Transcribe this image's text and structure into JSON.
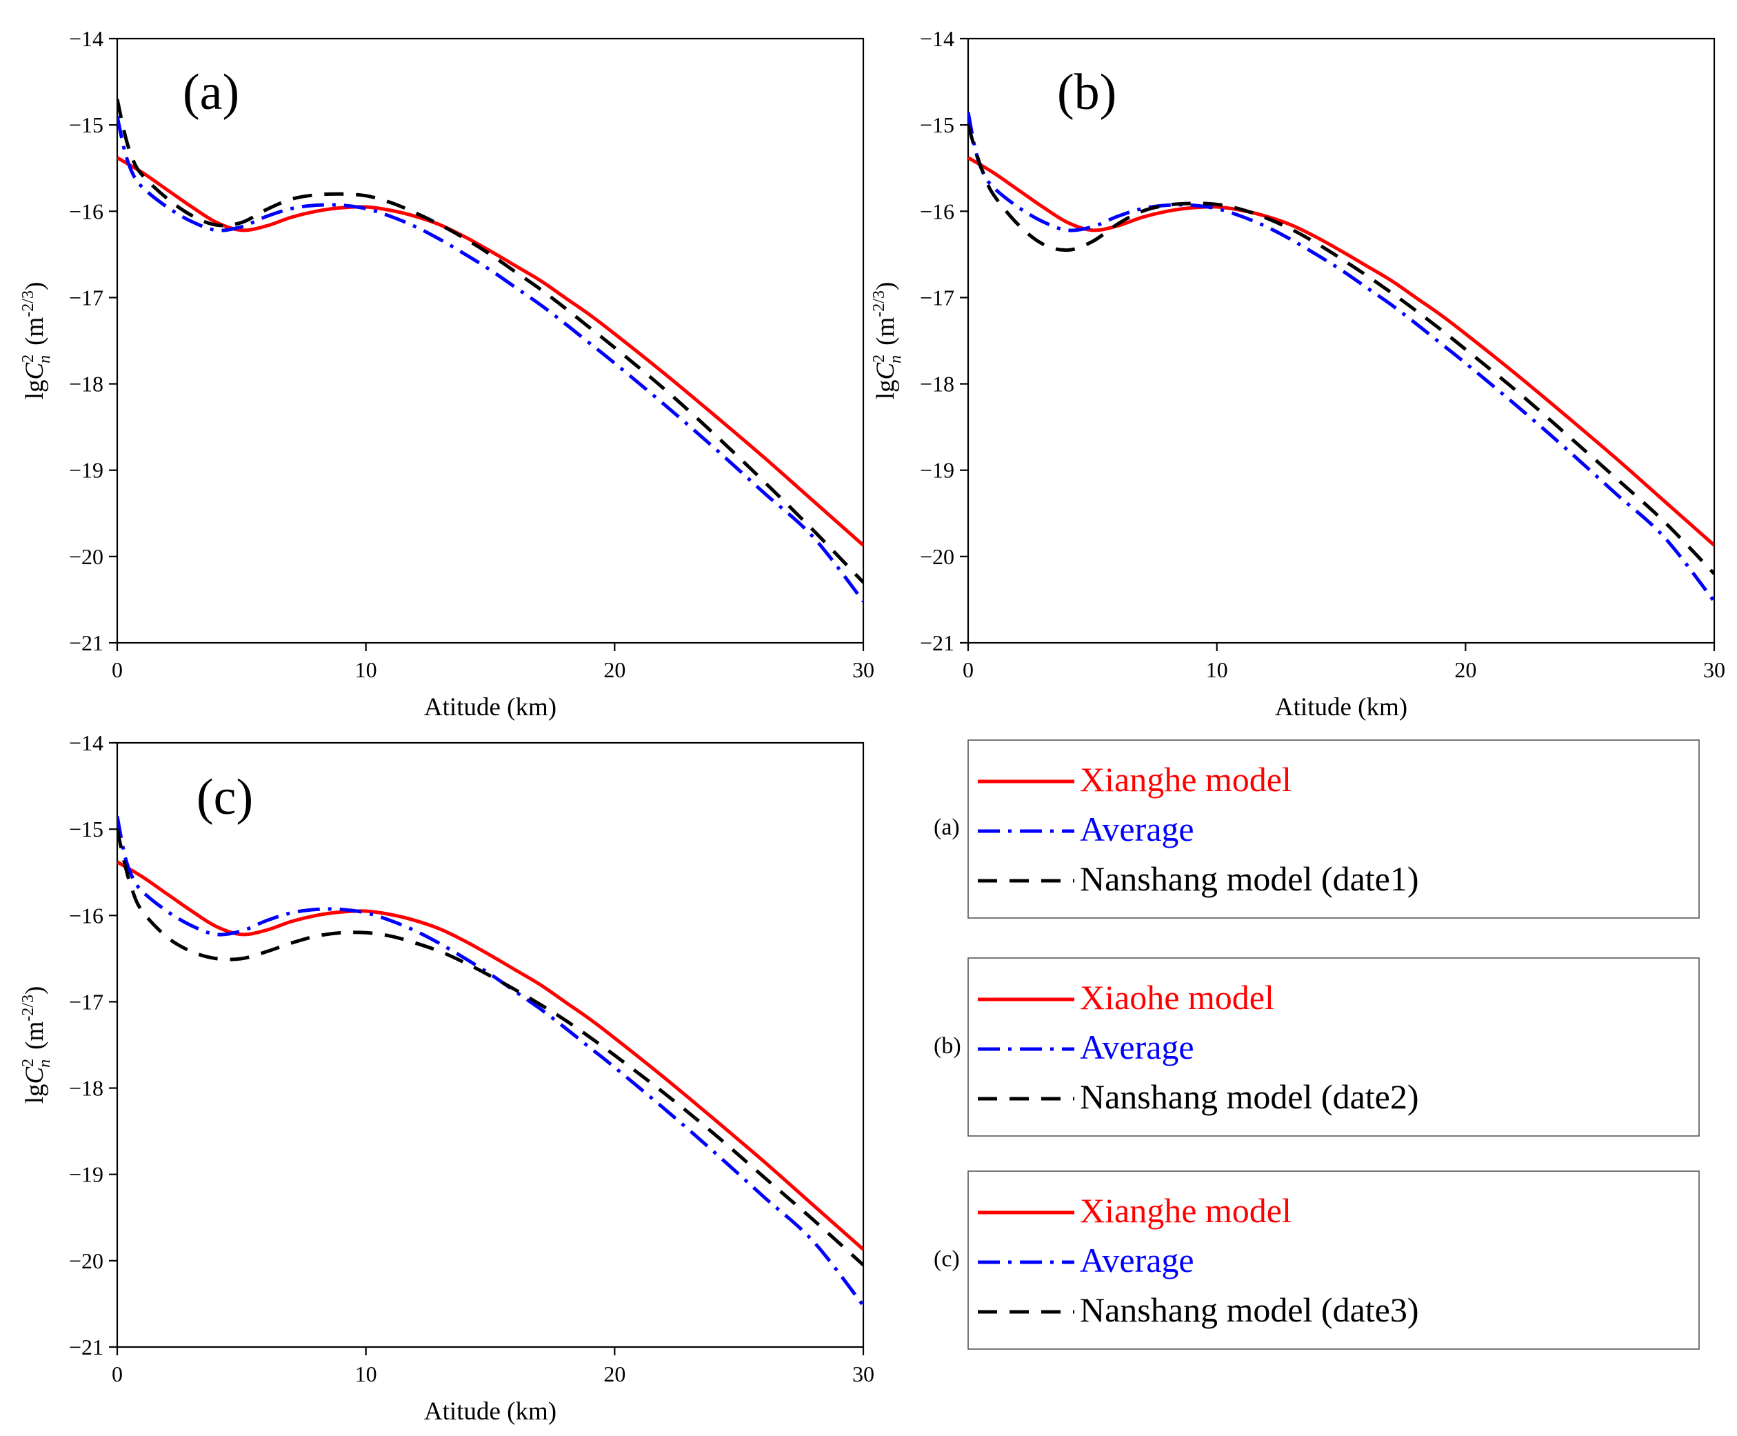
{
  "figure_title": "",
  "chart_data": [
    {
      "type": "line",
      "panel": "(a)",
      "title": "(a)",
      "xlabel": "Atitude  (km)",
      "ylabel_prefix": "lg",
      "ylabel_var": "C",
      "ylabel_sup": "2",
      "ylabel_sub": "n",
      "ylabel_unit": "(m",
      "ylabel_unit_sup": "-2/3",
      "ylabel_unit_close": ")",
      "xlim": [
        0,
        30
      ],
      "ylim": [
        -21,
        -14
      ],
      "xticks": [
        0,
        10,
        20,
        30
      ],
      "yticks": [
        -14,
        -15,
        -16,
        -17,
        -18,
        -19,
        -20,
        -21
      ],
      "xtick_labels": [
        "0",
        "10",
        "20",
        "30"
      ],
      "ytick_labels": [
        "−14",
        "−15",
        "−16",
        "−17",
        "−18",
        "−19",
        "−20",
        "−21"
      ],
      "series": [
        {
          "name": "Xianghe model",
          "style": "solid",
          "color": "#ff0000",
          "x": [
            0,
            1,
            2,
            3,
            4,
            5,
            6,
            7,
            8,
            9,
            10,
            11,
            12,
            13,
            14,
            15,
            16,
            17,
            18,
            19,
            20,
            22,
            24,
            26,
            28,
            30
          ],
          "y": [
            -15.38,
            -15.55,
            -15.75,
            -15.95,
            -16.13,
            -16.22,
            -16.17,
            -16.07,
            -16.0,
            -15.96,
            -15.95,
            -15.99,
            -16.06,
            -16.16,
            -16.3,
            -16.46,
            -16.63,
            -16.8,
            -17.0,
            -17.2,
            -17.42,
            -17.88,
            -18.36,
            -18.85,
            -19.36,
            -19.87
          ]
        },
        {
          "name": "Average",
          "style": "dashdot",
          "color": "#0000ff",
          "x": [
            0,
            0.3,
            0.6,
            1,
            2,
            3,
            4,
            5,
            6,
            7,
            8,
            9,
            10,
            11,
            12,
            13,
            14,
            15,
            16,
            17,
            18,
            19,
            20,
            22,
            24,
            26,
            28,
            30
          ],
          "y": [
            -14.9,
            -15.3,
            -15.55,
            -15.72,
            -15.95,
            -16.12,
            -16.22,
            -16.18,
            -16.06,
            -15.97,
            -15.93,
            -15.93,
            -15.97,
            -16.06,
            -16.18,
            -16.33,
            -16.5,
            -16.68,
            -16.88,
            -17.08,
            -17.3,
            -17.53,
            -17.76,
            -18.24,
            -18.74,
            -19.26,
            -19.78,
            -20.52
          ]
        },
        {
          "name": "Nanshang model (date1)",
          "style": "dashed",
          "color": "#000000",
          "x": [
            0,
            0.3,
            0.6,
            1,
            2,
            3,
            4,
            5,
            6,
            7,
            8,
            9,
            10,
            11,
            12,
            13,
            14,
            15,
            16,
            17,
            18,
            19,
            20,
            22,
            24,
            26,
            28,
            30
          ],
          "y": [
            -14.7,
            -15.1,
            -15.38,
            -15.58,
            -15.85,
            -16.05,
            -16.16,
            -16.13,
            -15.98,
            -15.86,
            -15.81,
            -15.8,
            -15.82,
            -15.9,
            -16.02,
            -16.16,
            -16.32,
            -16.5,
            -16.7,
            -16.9,
            -17.12,
            -17.35,
            -17.58,
            -18.06,
            -18.58,
            -19.13,
            -19.7,
            -20.3
          ]
        }
      ]
    },
    {
      "type": "line",
      "panel": "(b)",
      "title": "(b)",
      "xlabel": "Atitude  (km)",
      "ylabel_prefix": "lg",
      "ylabel_var": "C",
      "ylabel_sup": "2",
      "ylabel_sub": "n",
      "ylabel_unit": "(m",
      "ylabel_unit_sup": "-2/3",
      "ylabel_unit_close": ")",
      "xlim": [
        0,
        30
      ],
      "ylim": [
        -21,
        -14
      ],
      "xticks": [
        0,
        10,
        20,
        30
      ],
      "yticks": [
        -14,
        -15,
        -16,
        -17,
        -18,
        -19,
        -20,
        -21
      ],
      "xtick_labels": [
        "0",
        "10",
        "20",
        "30"
      ],
      "ytick_labels": [
        "−14",
        "−15",
        "−16",
        "−17",
        "−18",
        "−19",
        "−20",
        "−21"
      ],
      "series": [
        {
          "name": "Xiaohe model",
          "style": "solid",
          "color": "#ff0000",
          "x": [
            0,
            1,
            2,
            3,
            4,
            5,
            6,
            7,
            8,
            9,
            10,
            11,
            12,
            13,
            14,
            15,
            16,
            17,
            18,
            19,
            20,
            22,
            24,
            26,
            28,
            30
          ],
          "y": [
            -15.38,
            -15.55,
            -15.75,
            -15.95,
            -16.13,
            -16.22,
            -16.17,
            -16.07,
            -16.0,
            -15.96,
            -15.95,
            -15.99,
            -16.06,
            -16.16,
            -16.3,
            -16.46,
            -16.63,
            -16.8,
            -17.0,
            -17.2,
            -17.42,
            -17.88,
            -18.36,
            -18.85,
            -19.36,
            -19.87
          ]
        },
        {
          "name": "Average",
          "style": "dashdot",
          "color": "#0000ff",
          "x": [
            0,
            0.3,
            0.6,
            1,
            2,
            3,
            4,
            5,
            6,
            7,
            8,
            9,
            10,
            11,
            12,
            13,
            14,
            15,
            16,
            17,
            18,
            19,
            20,
            22,
            24,
            26,
            28,
            30
          ],
          "y": [
            -14.85,
            -15.3,
            -15.55,
            -15.72,
            -15.95,
            -16.12,
            -16.22,
            -16.18,
            -16.06,
            -15.97,
            -15.93,
            -15.93,
            -15.97,
            -16.06,
            -16.18,
            -16.33,
            -16.5,
            -16.68,
            -16.88,
            -17.08,
            -17.3,
            -17.53,
            -17.76,
            -18.24,
            -18.74,
            -19.26,
            -19.78,
            -20.52
          ]
        },
        {
          "name": "Nanshang model (date2)",
          "style": "dashed",
          "color": "#000000",
          "x": [
            0,
            0.3,
            0.6,
            1,
            2,
            3,
            4,
            5,
            6,
            7,
            8,
            9,
            10,
            11,
            12,
            13,
            14,
            15,
            16,
            17,
            18,
            19,
            20,
            22,
            24,
            26,
            28,
            30
          ],
          "y": [
            -15.0,
            -15.3,
            -15.55,
            -15.8,
            -16.15,
            -16.38,
            -16.45,
            -16.35,
            -16.15,
            -16.0,
            -15.93,
            -15.91,
            -15.92,
            -15.98,
            -16.08,
            -16.21,
            -16.37,
            -16.55,
            -16.74,
            -16.94,
            -17.15,
            -17.37,
            -17.6,
            -18.07,
            -18.57,
            -19.08,
            -19.6,
            -20.2
          ]
        }
      ]
    },
    {
      "type": "line",
      "panel": "(c)",
      "title": "(c)",
      "xlabel": "Atitude  (km)",
      "ylabel_prefix": "lg",
      "ylabel_var": "C",
      "ylabel_sup": "2",
      "ylabel_sub": "n",
      "ylabel_unit": "(m",
      "ylabel_unit_sup": "-2/3",
      "ylabel_unit_close": ")",
      "xlim": [
        0,
        30
      ],
      "ylim": [
        -21,
        -14
      ],
      "xticks": [
        0,
        10,
        20,
        30
      ],
      "yticks": [
        -14,
        -15,
        -16,
        -17,
        -18,
        -19,
        -20,
        -21
      ],
      "xtick_labels": [
        "0",
        "10",
        "20",
        "30"
      ],
      "ytick_labels": [
        "−14",
        "−15",
        "−16",
        "−17",
        "−18",
        "−19",
        "−20",
        "−21"
      ],
      "series": [
        {
          "name": "Xianghe model",
          "style": "solid",
          "color": "#ff0000",
          "x": [
            0,
            1,
            2,
            3,
            4,
            5,
            6,
            7,
            8,
            9,
            10,
            11,
            12,
            13,
            14,
            15,
            16,
            17,
            18,
            19,
            20,
            22,
            24,
            26,
            28,
            30
          ],
          "y": [
            -15.38,
            -15.55,
            -15.75,
            -15.95,
            -16.13,
            -16.22,
            -16.17,
            -16.07,
            -16.0,
            -15.96,
            -15.95,
            -15.99,
            -16.06,
            -16.16,
            -16.3,
            -16.46,
            -16.63,
            -16.8,
            -17.0,
            -17.2,
            -17.42,
            -17.88,
            -18.36,
            -18.85,
            -19.36,
            -19.87
          ]
        },
        {
          "name": "Average",
          "style": "dashdot",
          "color": "#0000ff",
          "x": [
            0,
            0.3,
            0.6,
            1,
            2,
            3,
            4,
            5,
            6,
            7,
            8,
            9,
            10,
            11,
            12,
            13,
            14,
            15,
            16,
            17,
            18,
            19,
            20,
            22,
            24,
            26,
            28,
            30
          ],
          "y": [
            -14.85,
            -15.3,
            -15.55,
            -15.72,
            -15.95,
            -16.12,
            -16.22,
            -16.18,
            -16.06,
            -15.97,
            -15.93,
            -15.93,
            -15.97,
            -16.06,
            -16.18,
            -16.33,
            -16.5,
            -16.68,
            -16.88,
            -17.08,
            -17.3,
            -17.53,
            -17.76,
            -18.24,
            -18.74,
            -19.26,
            -19.78,
            -20.52
          ]
        },
        {
          "name": "Nanshang model (date3)",
          "style": "dashed",
          "color": "#000000",
          "x": [
            0,
            0.3,
            0.6,
            1,
            2,
            3,
            4,
            5,
            6,
            7,
            8,
            9,
            10,
            11,
            12,
            13,
            14,
            15,
            16,
            17,
            18,
            19,
            20,
            22,
            24,
            26,
            28,
            30
          ],
          "y": [
            -15.0,
            -15.4,
            -15.7,
            -15.95,
            -16.25,
            -16.42,
            -16.5,
            -16.5,
            -16.42,
            -16.32,
            -16.24,
            -16.2,
            -16.2,
            -16.24,
            -16.32,
            -16.42,
            -16.55,
            -16.7,
            -16.86,
            -17.03,
            -17.21,
            -17.41,
            -17.62,
            -18.06,
            -18.53,
            -19.03,
            -19.53,
            -20.05
          ]
        }
      ]
    }
  ],
  "legends": [
    {
      "tag": "(a)",
      "items": [
        {
          "label": "Xianghe model",
          "style": "solid",
          "color": "#ff0000"
        },
        {
          "label": "Average",
          "style": "dashdot",
          "color": "#0000ff"
        },
        {
          "label": "Nanshang model (date1)",
          "style": "dashed",
          "color": "#000000"
        }
      ]
    },
    {
      "tag": "(b)",
      "items": [
        {
          "label": "Xiaohe model",
          "style": "solid",
          "color": "#ff0000"
        },
        {
          "label": "Average",
          "style": "dashdot",
          "color": "#0000ff"
        },
        {
          "label": "Nanshang model (date2)",
          "style": "dashed",
          "color": "#000000"
        }
      ]
    },
    {
      "tag": "(c)",
      "items": [
        {
          "label": "Xianghe model",
          "style": "solid",
          "color": "#ff0000"
        },
        {
          "label": "Average",
          "style": "dashdot",
          "color": "#0000ff"
        },
        {
          "label": "Nanshang model (date3)",
          "style": "dashed",
          "color": "#000000"
        }
      ]
    }
  ]
}
